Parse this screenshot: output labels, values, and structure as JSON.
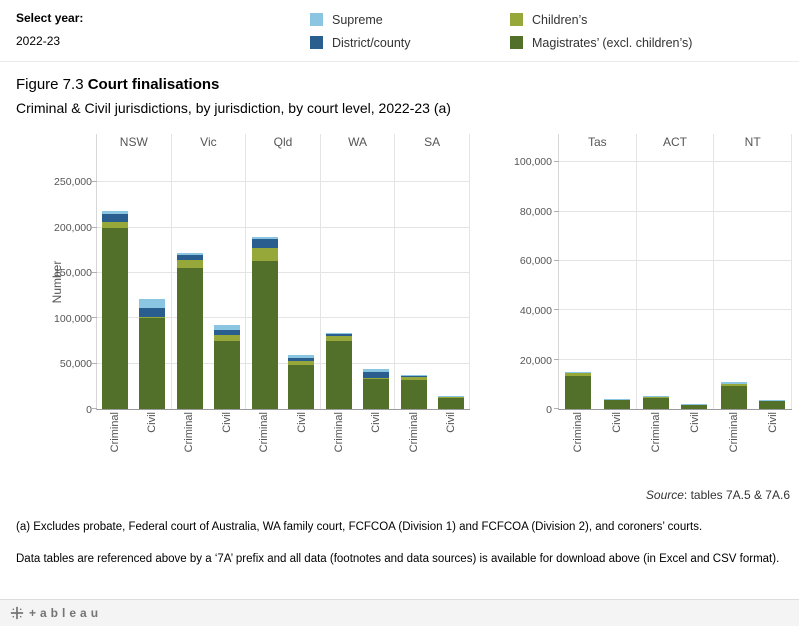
{
  "controls": {
    "select_year_label": "Select year:",
    "select_year_value": "2022-23"
  },
  "legend": {
    "columns": [
      {
        "items": [
          {
            "label": "Supreme",
            "color": "#8ac6e2"
          },
          {
            "label": "District/county",
            "color": "#2a5e8f"
          }
        ]
      },
      {
        "items": [
          {
            "label": "Children’s",
            "color": "#97a83b"
          },
          {
            "label": "Magistrates’ (excl. children’s)",
            "color": "#52702a"
          }
        ]
      }
    ]
  },
  "title": {
    "prefix": "Figure 7.3 ",
    "bold": "Court finalisations"
  },
  "subtitle": "Criminal & Civil jurisdictions, by jurisdiction, by court level, 2022-23 (a)",
  "chart_data": {
    "type": "bar",
    "stacked": true,
    "title": "Figure 7.3 Court finalisations",
    "xlabel": "",
    "ylabel": "Number",
    "grid": true,
    "legend_position": "top",
    "series": [
      {
        "key": "magistrates",
        "name": "Magistrates’ (excl. children’s)",
        "color": "#52702a"
      },
      {
        "key": "childrens",
        "name": "Children’s",
        "color": "#97a83b"
      },
      {
        "key": "district",
        "name": "District/county",
        "color": "#2a5e8f"
      },
      {
        "key": "supreme",
        "name": "Supreme",
        "color": "#8ac6e2"
      }
    ],
    "panels": [
      {
        "ymax": 280000,
        "yticks": [
          0,
          50000,
          100000,
          150000,
          200000,
          250000
        ],
        "groups": [
          {
            "state": "NSW",
            "bars": [
              {
                "jurisdiction": "Criminal",
                "values": {
                  "magistrates": 200000,
                  "childrens": 6000,
                  "district": 9500,
                  "supreme": 2500
                }
              },
              {
                "jurisdiction": "Civil",
                "values": {
                  "magistrates": 100500,
                  "childrens": 1500,
                  "district": 9000,
                  "supreme": 10000
                }
              }
            ]
          },
          {
            "state": "Vic",
            "bars": [
              {
                "jurisdiction": "Criminal",
                "values": {
                  "magistrates": 155000,
                  "childrens": 9000,
                  "district": 6000,
                  "supreme": 2000
                }
              },
              {
                "jurisdiction": "Civil",
                "values": {
                  "magistrates": 75000,
                  "childrens": 6500,
                  "district": 5500,
                  "supreme": 5500
                }
              }
            ]
          },
          {
            "state": "Qld",
            "bars": [
              {
                "jurisdiction": "Criminal",
                "values": {
                  "magistrates": 163000,
                  "childrens": 15000,
                  "district": 10000,
                  "supreme": 2000
                }
              },
              {
                "jurisdiction": "Civil",
                "values": {
                  "magistrates": 48000,
                  "childrens": 4500,
                  "district": 3500,
                  "supreme": 4000
                }
              }
            ]
          },
          {
            "state": "WA",
            "bars": [
              {
                "jurisdiction": "Criminal",
                "values": {
                  "magistrates": 74500,
                  "childrens": 5500,
                  "district": 2500,
                  "supreme": 1000
                }
              },
              {
                "jurisdiction": "Civil",
                "values": {
                  "magistrates": 33500,
                  "childrens": 1000,
                  "district": 6500,
                  "supreme": 3000
                }
              }
            ]
          },
          {
            "state": "SA",
            "bars": [
              {
                "jurisdiction": "Criminal",
                "values": {
                  "magistrates": 32000,
                  "childrens": 3000,
                  "district": 1800,
                  "supreme": 1200
                }
              },
              {
                "jurisdiction": "Civil",
                "values": {
                  "magistrates": 12500,
                  "childrens": 400,
                  "district": 400,
                  "supreme": 700
                }
              }
            ]
          }
        ]
      },
      {
        "ymax": 103000,
        "yticks": [
          0,
          20000,
          40000,
          60000,
          80000,
          100000
        ],
        "groups": [
          {
            "state": "Tas",
            "bars": [
              {
                "jurisdiction": "Criminal",
                "values": {
                  "magistrates": 13500,
                  "childrens": 1200,
                  "district": 0,
                  "supreme": 300
                }
              },
              {
                "jurisdiction": "Civil",
                "values": {
                  "magistrates": 3700,
                  "childrens": 100,
                  "district": 0,
                  "supreme": 200
                }
              }
            ]
          },
          {
            "state": "ACT",
            "bars": [
              {
                "jurisdiction": "Criminal",
                "values": {
                  "magistrates": 4600,
                  "childrens": 400,
                  "district": 0,
                  "supreme": 200
                }
              },
              {
                "jurisdiction": "Civil",
                "values": {
                  "magistrates": 1800,
                  "childrens": 0,
                  "district": 0,
                  "supreme": 200
                }
              }
            ]
          },
          {
            "state": "NT",
            "bars": [
              {
                "jurisdiction": "Criminal",
                "values": {
                  "magistrates": 9500,
                  "childrens": 600,
                  "district": 0,
                  "supreme": 800
                }
              },
              {
                "jurisdiction": "Civil",
                "values": {
                  "magistrates": 3300,
                  "childrens": 0,
                  "district": 0,
                  "supreme": 300
                }
              }
            ]
          }
        ]
      }
    ]
  },
  "source": {
    "italic": "Source",
    "rest": ": tables 7A.5 & 7A.6"
  },
  "footnotes": [
    "(a) Excludes probate, Federal court of Australia, WA family court, FCFCOA (Division 1) and FCFCOA (Division 2), and coroners’ courts.",
    "Data tables are referenced above by a ‘7A’ prefix and all data (footnotes and data sources) is available for download above (in Excel and CSV format)."
  ],
  "footer": {
    "logo_text": "+ableau"
  }
}
